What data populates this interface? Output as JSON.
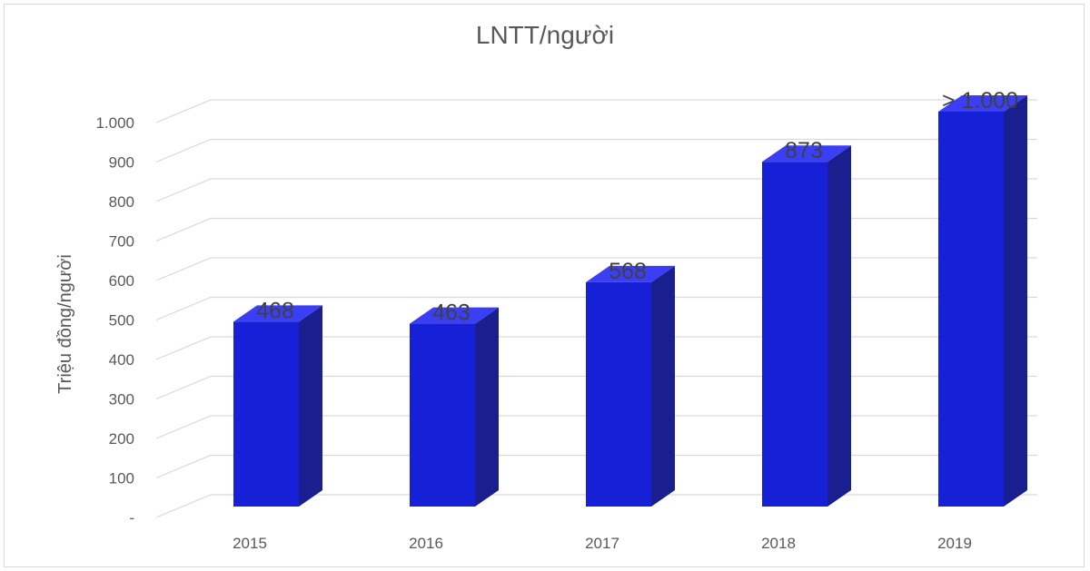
{
  "chart_data": {
    "type": "bar",
    "title": "LNTT/người",
    "ylabel": "Triệu đồng/người",
    "xlabel": "",
    "categories": [
      "2015",
      "2016",
      "2017",
      "2018",
      "2019"
    ],
    "values": [
      468,
      463,
      568,
      873,
      1000
    ],
    "data_labels": [
      "468",
      "463",
      "568",
      "873",
      "> 1.000"
    ],
    "yticks": [
      {
        "value": 0,
        "label": "-"
      },
      {
        "value": 100,
        "label": "100"
      },
      {
        "value": 200,
        "label": "200"
      },
      {
        "value": 300,
        "label": "300"
      },
      {
        "value": 400,
        "label": "400"
      },
      {
        "value": 500,
        "label": "500"
      },
      {
        "value": 600,
        "label": "600"
      },
      {
        "value": 700,
        "label": "700"
      },
      {
        "value": 800,
        "label": "800"
      },
      {
        "value": 900,
        "label": "900"
      },
      {
        "value": 1000,
        "label": "1.000"
      }
    ],
    "ylim": [
      0,
      1100
    ],
    "grid": true,
    "legend": "none",
    "style": "3d-column",
    "colors": {
      "front": "#1620d6",
      "side": "#1a1f8f",
      "top": "#3a3ff5",
      "grid": "#d9d9d9"
    }
  }
}
